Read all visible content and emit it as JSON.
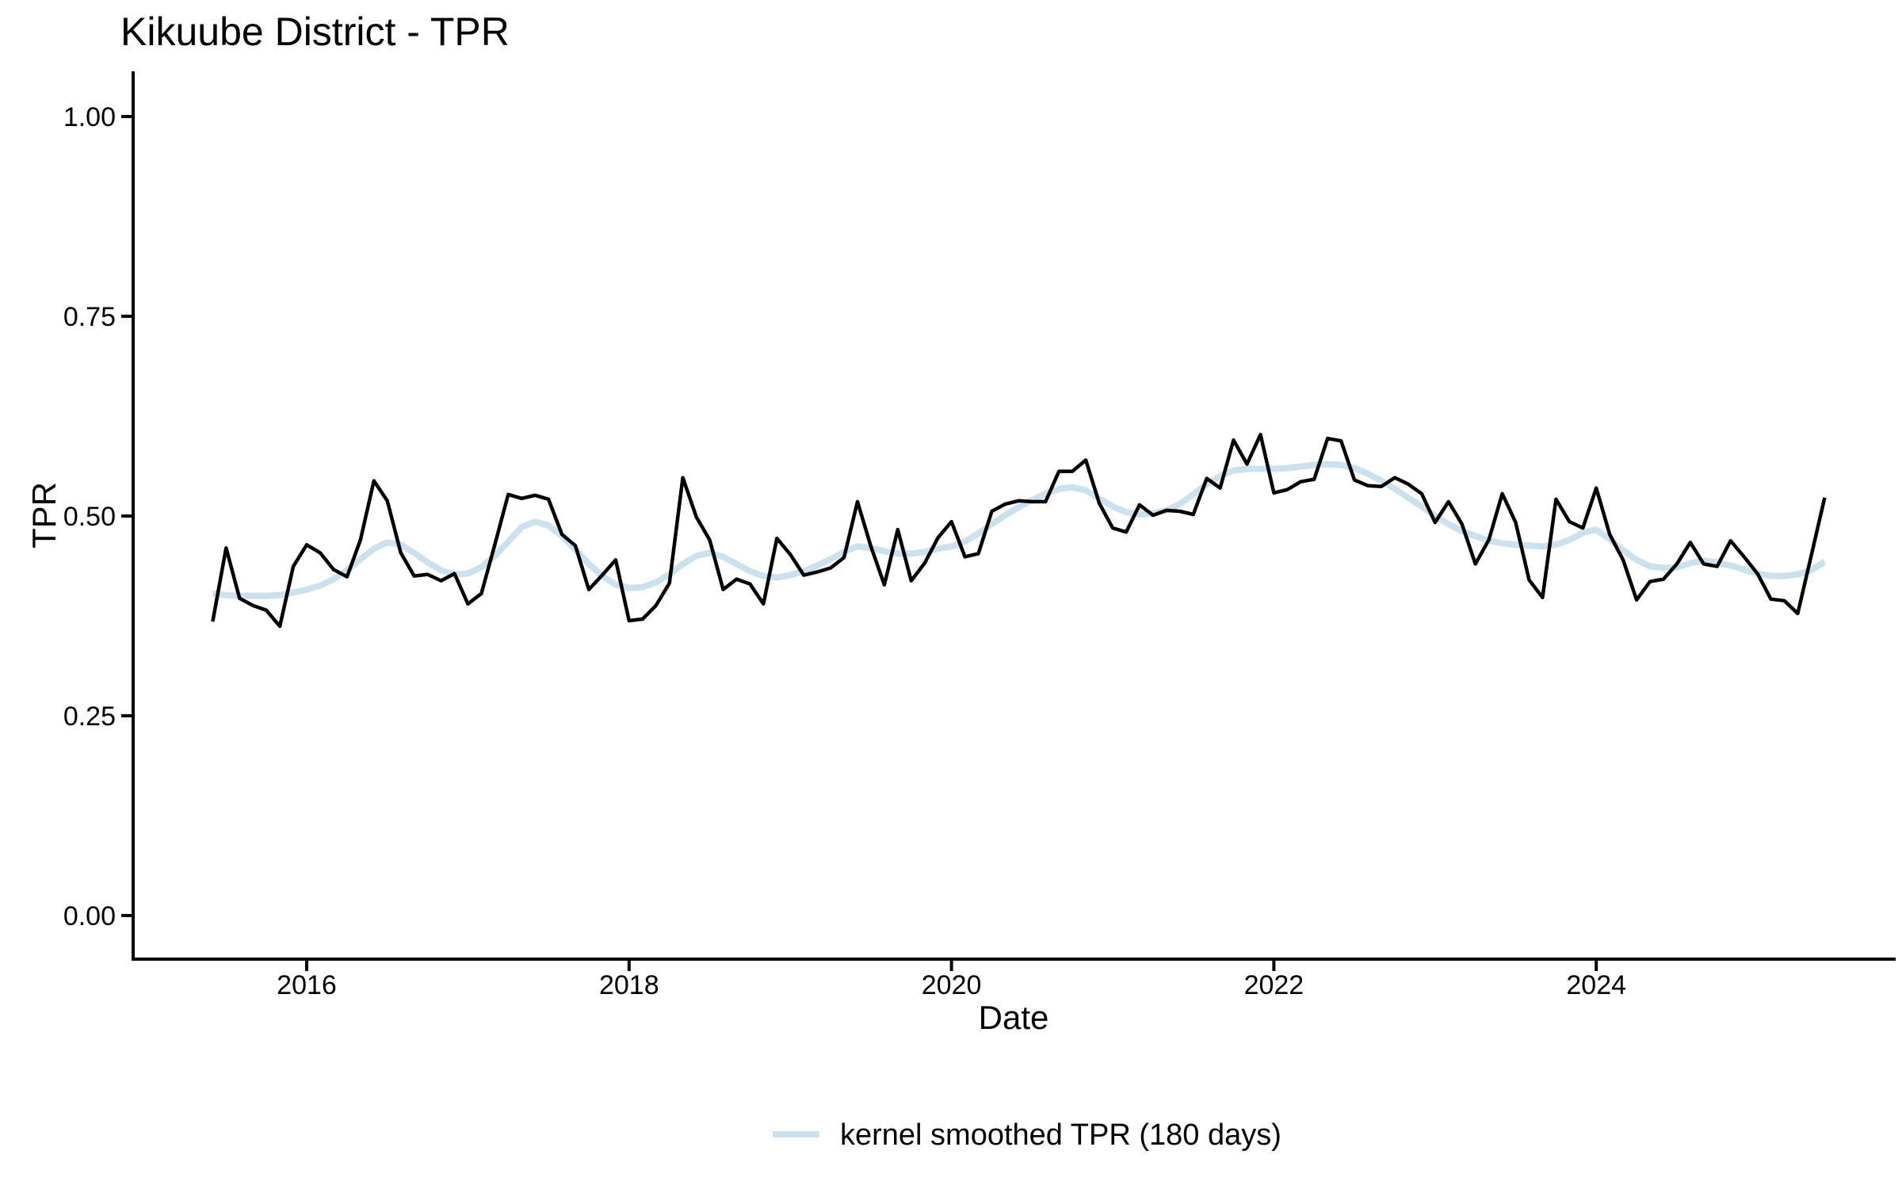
{
  "title": "Kikuube District - TPR",
  "x_axis": {
    "label": "Date",
    "ticks": [
      "2016",
      "2018",
      "2020",
      "2022",
      "2024"
    ],
    "tick_years": [
      2016,
      2018,
      2020,
      2022,
      2024
    ]
  },
  "y_axis": {
    "label": "TPR",
    "ticks": [
      "0.00",
      "0.25",
      "0.50",
      "0.75",
      "1.00"
    ],
    "tick_values": [
      0,
      0.25,
      0.5,
      0.75,
      1
    ]
  },
  "legend": {
    "label": "kernel smoothed TPR (180 days)"
  },
  "colors": {
    "tpr_line": "#000000",
    "smoothed_line": "#cbe1ed",
    "axis": "#000000",
    "text": "#000000",
    "background": "#ffffff"
  },
  "chart_data": {
    "type": "line",
    "title": "Kikuube District - TPR",
    "xlabel": "Date",
    "ylabel": "TPR",
    "ylim": [
      0,
      1
    ],
    "xlim_years": [
      2015.4,
      2025.5
    ],
    "x_start": "2015-06",
    "x_end": "2025-06",
    "frequency": "monthly",
    "grid": false,
    "legend_position": "bottom",
    "series": [
      {
        "name": "TPR",
        "color": "#000000",
        "stroke_width": 4.5,
        "values": [
          0.368,
          0.46,
          0.397,
          0.388,
          0.382,
          0.362,
          0.437,
          0.464,
          0.454,
          0.433,
          0.424,
          0.47,
          0.544,
          0.519,
          0.454,
          0.425,
          0.427,
          0.419,
          0.428,
          0.39,
          0.403,
          0.464,
          0.527,
          0.522,
          0.526,
          0.521,
          0.477,
          0.463,
          0.408,
          0.426,
          0.445,
          0.369,
          0.371,
          0.388,
          0.416,
          0.548,
          0.499,
          0.47,
          0.408,
          0.421,
          0.415,
          0.39,
          0.472,
          0.452,
          0.426,
          0.43,
          0.435,
          0.448,
          0.518,
          0.462,
          0.414,
          0.483,
          0.419,
          0.441,
          0.473,
          0.493,
          0.449,
          0.453,
          0.506,
          0.515,
          0.519,
          0.518,
          0.518,
          0.556,
          0.556,
          0.57,
          0.516,
          0.485,
          0.48,
          0.514,
          0.501,
          0.507,
          0.506,
          0.502,
          0.547,
          0.535,
          0.595,
          0.565,
          0.602,
          0.529,
          0.533,
          0.543,
          0.546,
          0.597,
          0.594,
          0.545,
          0.538,
          0.537,
          0.548,
          0.54,
          0.528,
          0.492,
          0.518,
          0.49,
          0.44,
          0.47,
          0.528,
          0.492,
          0.42,
          0.398,
          0.521,
          0.493,
          0.485,
          0.535,
          0.477,
          0.445,
          0.395,
          0.418,
          0.421,
          0.44,
          0.467,
          0.44,
          0.437,
          0.469,
          0.449,
          0.428,
          0.396,
          0.394,
          0.378,
          0.45,
          0.523
        ]
      },
      {
        "name": "kernel smoothed TPR (180 days)",
        "color": "#cbe1ed",
        "stroke_width": 8,
        "values": [
          0.403,
          0.401,
          0.4,
          0.4,
          0.4,
          0.401,
          0.404,
          0.408,
          0.413,
          0.421,
          0.432,
          0.446,
          0.459,
          0.467,
          0.464,
          0.454,
          0.442,
          0.432,
          0.427,
          0.428,
          0.436,
          0.45,
          0.468,
          0.486,
          0.493,
          0.488,
          0.475,
          0.458,
          0.44,
          0.425,
          0.414,
          0.41,
          0.411,
          0.417,
          0.427,
          0.44,
          0.45,
          0.454,
          0.449,
          0.44,
          0.431,
          0.425,
          0.423,
          0.426,
          0.431,
          0.438,
          0.446,
          0.455,
          0.462,
          0.46,
          0.456,
          0.453,
          0.453,
          0.455,
          0.459,
          0.462,
          0.468,
          0.478,
          0.49,
          0.501,
          0.511,
          0.52,
          0.528,
          0.534,
          0.536,
          0.532,
          0.522,
          0.512,
          0.505,
          0.502,
          0.503,
          0.507,
          0.515,
          0.527,
          0.54,
          0.55,
          0.557,
          0.559,
          0.559,
          0.559,
          0.56,
          0.562,
          0.564,
          0.565,
          0.564,
          0.56,
          0.553,
          0.544,
          0.534,
          0.523,
          0.512,
          0.5,
          0.49,
          0.481,
          0.475,
          0.469,
          0.466,
          0.464,
          0.463,
          0.462,
          0.464,
          0.47,
          0.479,
          0.483,
          0.471,
          0.457,
          0.445,
          0.437,
          0.435,
          0.436,
          0.441,
          0.444,
          0.442,
          0.438,
          0.433,
          0.428,
          0.425,
          0.425,
          0.427,
          0.432,
          0.443
        ]
      }
    ]
  }
}
